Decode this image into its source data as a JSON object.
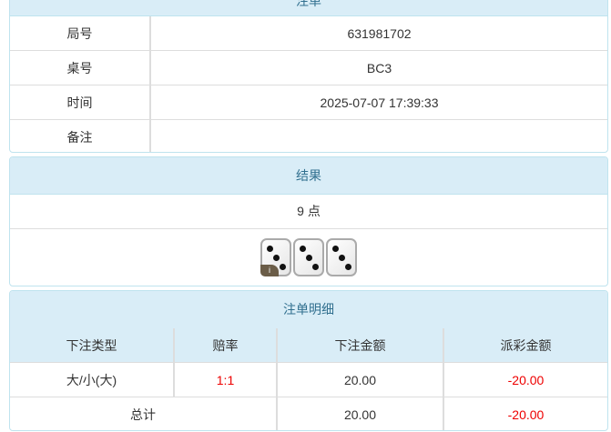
{
  "order": {
    "title": "注单",
    "rows": [
      {
        "label": "局号",
        "value": "631981702"
      },
      {
        "label": "桌号",
        "value": "BC3"
      },
      {
        "label": "时间",
        "value": "2025-07-07 17:39:33"
      },
      {
        "label": "备注",
        "value": ""
      }
    ]
  },
  "result": {
    "title": "结果",
    "points": "9 点",
    "dice": [
      3,
      3,
      3
    ],
    "info_badge": "i"
  },
  "detail": {
    "title": "注单明细",
    "headers": [
      "下注类型",
      "赔率",
      "下注金额",
      "派彩金额"
    ],
    "rows": [
      [
        "大/小(大)",
        "1:1",
        "20.00",
        "-20.00"
      ]
    ],
    "total": {
      "label": "总计",
      "bet": "20.00",
      "payout": "-20.00"
    }
  }
}
